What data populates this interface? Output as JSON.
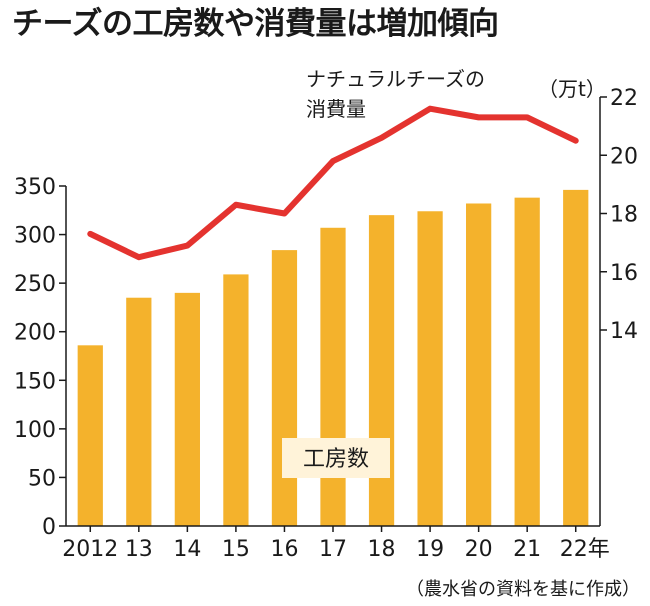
{
  "title": "チーズの工房数や消費量は増加傾向",
  "source_note": "（農水省の資料を基に作成）",
  "colors": {
    "bar": "#f4b22c",
    "line": "#e4332f",
    "axis": "#1a1a1a",
    "label_box": "#fff3d9"
  },
  "chart_data": {
    "type": "bar+line",
    "categories": [
      "2012",
      "13",
      "14",
      "15",
      "16",
      "17",
      "18",
      "19",
      "20",
      "21",
      "22年"
    ],
    "series": [
      {
        "name": "工房数",
        "type": "bar",
        "axis": "left",
        "values": [
          186,
          235,
          240,
          259,
          284,
          307,
          320,
          324,
          332,
          338,
          346
        ]
      },
      {
        "name": "ナチュラルチーズの消費量",
        "type": "line",
        "axis": "right",
        "values": [
          17.3,
          16.5,
          16.9,
          18.3,
          18.0,
          19.8,
          20.6,
          21.6,
          21.3,
          21.3,
          20.5
        ]
      }
    ],
    "left_axis": {
      "ylim": [
        0,
        350
      ],
      "ticks": [
        "0",
        "50",
        "100",
        "150",
        "200",
        "250",
        "300",
        "350"
      ]
    },
    "right_axis": {
      "unit": "（万t）",
      "ylim": [
        14,
        22
      ],
      "ticks": [
        "14",
        "16",
        "18",
        "20",
        "22"
      ]
    },
    "series_labels": {
      "bar_label": "工房数",
      "line_label_line1": "ナチュラルチーズの",
      "line_label_line2": "消費量"
    }
  }
}
